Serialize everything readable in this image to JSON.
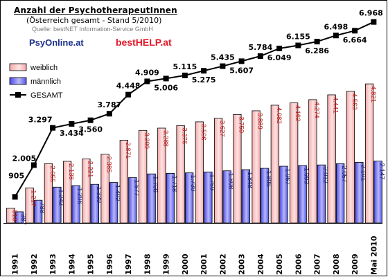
{
  "header": {
    "title": "Anzahl der PsychotherapeutInnen",
    "subtitle": "(Österreich gesamt - Stand 5/2010)",
    "source": "Quelle: bestNET Information-Service GmbH",
    "brand_left": "PsyOnline.at",
    "brand_right": "bestHELP.at"
  },
  "colors": {
    "weiblich": "#f4a9a9",
    "maennlich": "#8f8ff0",
    "gesamt": "#000000",
    "brand_left": "#1a2f8a",
    "brand_right": "#e0192a"
  },
  "chart_data": {
    "type": "bar",
    "categories": [
      "1991",
      "1992",
      "1993",
      "1994",
      "1995",
      "1996",
      "1997",
      "1998",
      "1999",
      "2000",
      "2001",
      "2002",
      "2003",
      "2004",
      "2005",
      "2006",
      "2007",
      "2008",
      "2009",
      "Mai 2010"
    ],
    "series": [
      {
        "name": "weiblich",
        "values": [
          518,
          1217,
          2055,
          2138,
          2221,
          2385,
          2871,
          3209,
          3288,
          3376,
          3506,
          3627,
          3759,
          3889,
          4082,
          4162,
          4274,
          4441,
          4563,
          4821
        ]
      },
      {
        "name": "männlich",
        "values": [
          387,
          788,
          1242,
          1296,
          1339,
          1402,
          1577,
          1700,
          1718,
          1739,
          1769,
          1808,
          1848,
          1895,
          1967,
          1993,
          2012,
          2057,
          2101,
          2147
        ]
      },
      {
        "name": "GESAMT",
        "type": "line",
        "values": [
          905,
          2005,
          3297,
          3434,
          3560,
          3787,
          4448,
          4909,
          5006,
          5115,
          5275,
          5435,
          5607,
          5784,
          6049,
          6155,
          6286,
          6498,
          6664,
          6968
        ]
      }
    ],
    "series_labels": {
      "weiblich": [
        "518",
        "1.217",
        "2.055",
        "2.138",
        "2.221",
        "2.385",
        "2.871",
        "3.209",
        "3.288",
        "3.376",
        "3.506",
        "3.627",
        "3.759",
        "3.889",
        "4.082",
        "4.162",
        "4.274",
        "4.441",
        "4.563",
        "4.821"
      ],
      "männlich": [
        "387",
        "788",
        "1.242",
        "1.296",
        "1.339",
        "1.402",
        "1.577",
        "1.700",
        "1.718",
        "1.739",
        "1.769",
        "1.808",
        "1.848",
        "1.895",
        "1.967",
        "1.993",
        "2.012",
        "2.057",
        "2.101",
        "2.147"
      ],
      "GESAMT": [
        "905",
        "2.005",
        "3.297",
        "3.434",
        "3.560",
        "3.787",
        "4.448",
        "4.909",
        "5.006",
        "5.115",
        "5.275",
        "5.435",
        "5.607",
        "5.784",
        "6.049",
        "6.155",
        "6.286",
        "6.498",
        "6.664",
        "6.968"
      ]
    },
    "ylim": [
      0,
      7200
    ],
    "grid": false,
    "legend_position": "top-left",
    "xlabel": "",
    "ylabel": ""
  }
}
